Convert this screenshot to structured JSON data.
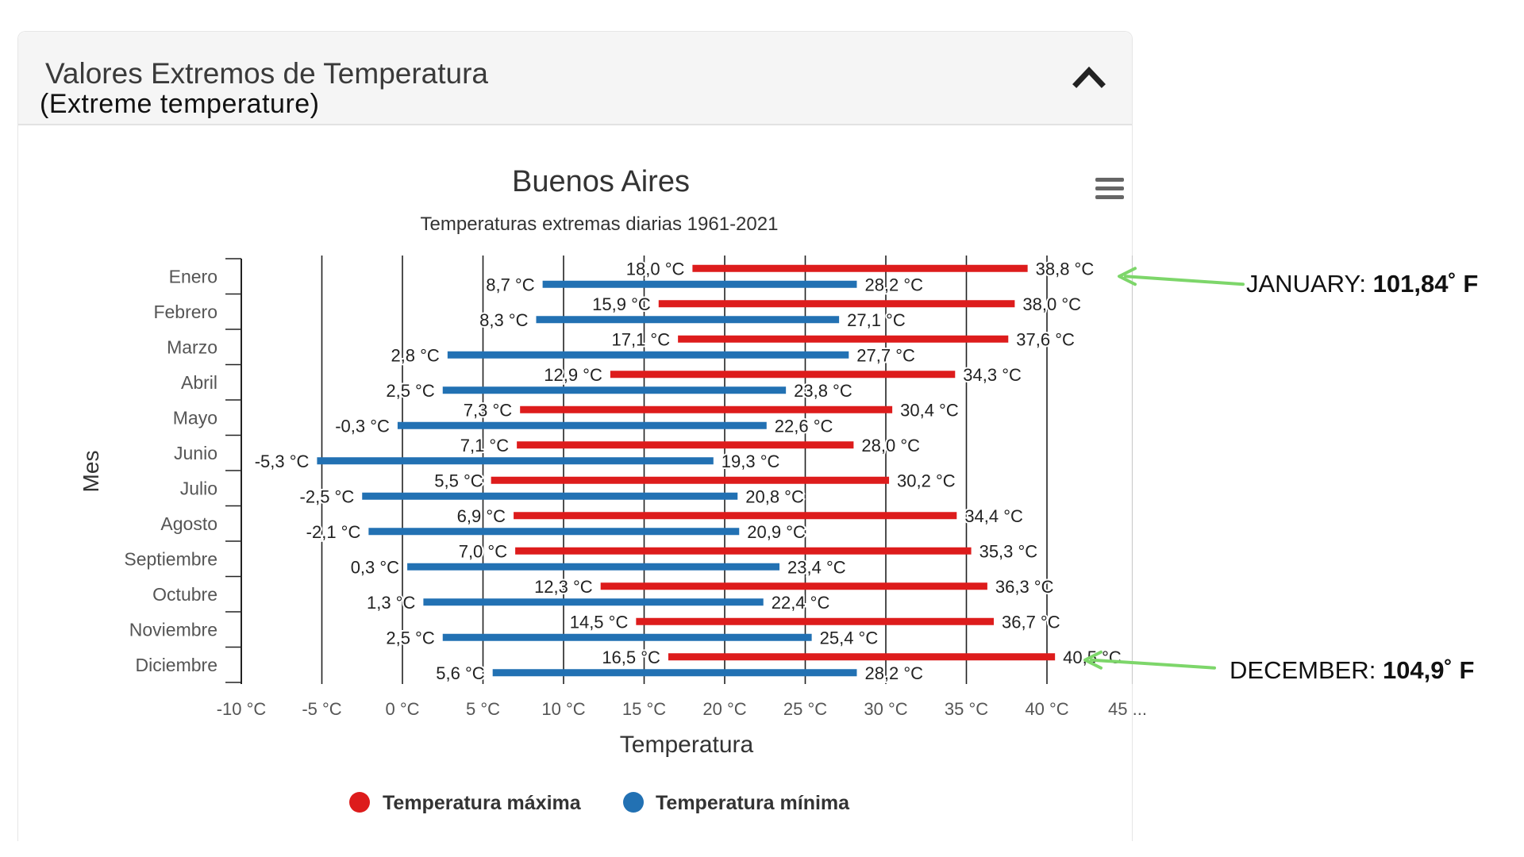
{
  "panel": {
    "title": "Valores Extremos de Temperatura",
    "subtitle": "(Extreme temperature)",
    "collapse_icon": "chevron-up-icon"
  },
  "menu_icon": "hamburger-menu-icon",
  "chart_data": {
    "type": "bar",
    "orientation": "horizontal",
    "title": "Buenos Aires",
    "subtitle": "Temperaturas extremas diarias 1961-2021",
    "xlabel": "Temperatura",
    "ylabel": "Mes",
    "xlim": [
      -10,
      45
    ],
    "x_ticks": [
      -10,
      -5,
      0,
      5,
      10,
      15,
      20,
      25,
      30,
      35,
      40,
      45
    ],
    "x_tick_labels": [
      "-10 °C",
      "-5 °C",
      "0 °C",
      "5 °C",
      "10 °C",
      "15 °C",
      "20 °C",
      "25 °C",
      "30 °C",
      "35 °C",
      "40 °C",
      "45 ..."
    ],
    "grid": "vertical",
    "legend_position": "bottom-center",
    "categories": [
      "Enero",
      "Febrero",
      "Marzo",
      "Abril",
      "Mayo",
      "Junio",
      "Julio",
      "Agosto",
      "Septiembre",
      "Octubre",
      "Noviembre",
      "Diciembre"
    ],
    "series": [
      {
        "name": "Temperatura máxima",
        "color": "#dd1c1c",
        "low": [
          18.0,
          15.9,
          17.1,
          12.9,
          7.3,
          7.1,
          5.5,
          6.9,
          7.0,
          12.3,
          14.5,
          16.5
        ],
        "high": [
          38.8,
          38.0,
          37.6,
          34.3,
          30.4,
          28.0,
          30.2,
          34.4,
          35.3,
          36.3,
          36.7,
          40.5
        ],
        "low_labels": [
          "18,0 °C",
          "15,9 °C",
          "17,1 °C",
          "12,9 °C",
          "7,3 °C",
          "7,1 °C",
          "5,5 °C",
          "6,9 °C",
          "7,0 °C",
          "12,3 °C",
          "14,5 °C",
          "16,5 °C"
        ],
        "high_labels": [
          "38,8 °C",
          "38,0 °C",
          "37,6 °C",
          "34,3 °C",
          "30,4 °C",
          "28,0 °C",
          "30,2 °C",
          "34,4 °C",
          "35,3 °C",
          "36,3 °C",
          "36,7 °C",
          "40,5 °C"
        ]
      },
      {
        "name": "Temperatura mínima",
        "color": "#2271b3",
        "low": [
          8.7,
          8.3,
          2.8,
          2.5,
          -0.3,
          -5.3,
          -2.5,
          -2.1,
          0.3,
          1.3,
          2.5,
          5.6
        ],
        "high": [
          28.2,
          27.1,
          27.7,
          23.8,
          22.6,
          19.3,
          20.8,
          20.9,
          23.4,
          22.4,
          25.4,
          28.2
        ],
        "low_labels": [
          "8,7 °C",
          "8,3 °C",
          "2,8 °C",
          "2,5 °C",
          "-0,3 °C",
          "-5,3 °C",
          "-2,5 °C",
          "-2,1 °C",
          "0,3 °C",
          "1,3 °C",
          "2,5 °C",
          "5,6 °C"
        ],
        "high_labels": [
          "28,2 °C",
          "27,1 °C",
          "27,7 °C",
          "23,8 °C",
          "22,6 °C",
          "19,3 °C",
          "20,8 °C",
          "20,9 °C",
          "23,4 °C",
          "22,4 °C",
          "25,4 °C",
          "28,2 °C"
        ]
      }
    ]
  },
  "annotations": [
    {
      "label": "JANUARY:",
      "value": "101,84˚ F",
      "month": "Enero",
      "arrow_color": "#7dd66a"
    },
    {
      "label": "DECEMBER:",
      "value": "104,9˚ F",
      "month": "Diciembre",
      "arrow_color": "#7dd66a"
    }
  ]
}
